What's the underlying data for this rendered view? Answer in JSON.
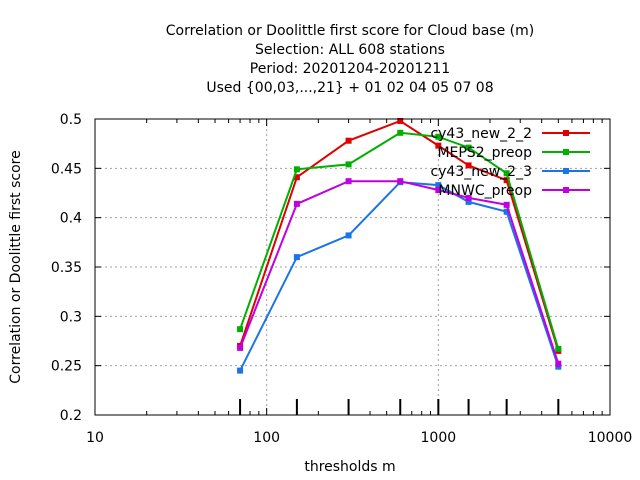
{
  "chart_data": {
    "type": "line",
    "title_lines": [
      "Correlation or Doolittle first score  for Cloud base (m)",
      "Selection: ALL    608 stations",
      "Period: 20201204-20201211",
      "Used {00,03,...,21} + 01 02 04 05 07 08"
    ],
    "xlabel": "thresholds m",
    "ylabel": "Correlation or Doolittle first score",
    "x_scale": "log",
    "xlim": [
      10,
      10000
    ],
    "ylim": [
      0.2,
      0.5
    ],
    "x_ticks": [
      10,
      100,
      1000,
      10000
    ],
    "x_tick_labels": [
      "10",
      "100",
      "1000",
      "10000"
    ],
    "y_ticks": [
      0.2,
      0.25,
      0.3,
      0.35,
      0.4,
      0.45,
      0.5
    ],
    "y_tick_labels": [
      "0.2",
      "0.25",
      "0.3",
      "0.35",
      "0.4",
      "0.45",
      "0.5"
    ],
    "grid": true,
    "legend_position": "top-right",
    "x": [
      70,
      150,
      300,
      600,
      1000,
      1500,
      2500,
      5000
    ],
    "series": [
      {
        "name": "cy43_new_2_2",
        "color": "#e00000",
        "values": [
          0.27,
          0.441,
          0.478,
          0.498,
          0.473,
          0.453,
          0.438,
          0.265
        ]
      },
      {
        "name": "MEPS2_preop",
        "color": "#00b000",
        "values": [
          0.287,
          0.449,
          0.454,
          0.486,
          0.482,
          0.471,
          0.445,
          0.267
        ]
      },
      {
        "name": "cy43_new_2_3",
        "color": "#1a73e8",
        "values": [
          0.245,
          0.36,
          0.382,
          0.436,
          0.433,
          0.416,
          0.406,
          0.249
        ]
      },
      {
        "name": "MNWC_preop",
        "color": "#c000e0",
        "values": [
          0.268,
          0.414,
          0.437,
          0.437,
          0.428,
          0.42,
          0.413,
          0.252
        ]
      }
    ]
  }
}
